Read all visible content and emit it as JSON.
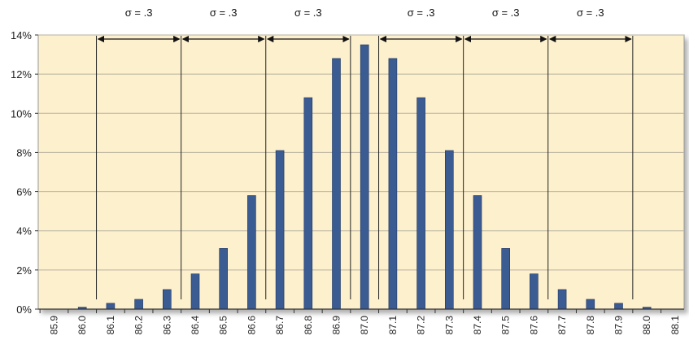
{
  "chart_data": {
    "type": "bar",
    "categories": [
      "85.9",
      "86.0",
      "86.1",
      "86.2",
      "86.3",
      "86.4",
      "86.5",
      "86.6",
      "86.7",
      "86.8",
      "86.9",
      "87.0",
      "87.1",
      "87.2",
      "87.3",
      "87.4",
      "87.5",
      "87.6",
      "87.7",
      "87.8",
      "87.9",
      "88.0",
      "88.1"
    ],
    "values": [
      0,
      0.1,
      0.3,
      0.5,
      1.0,
      1.8,
      3.1,
      5.8,
      8.1,
      10.8,
      12.8,
      13.5,
      12.8,
      10.8,
      8.1,
      5.8,
      3.1,
      1.8,
      1.0,
      0.5,
      0.3,
      0.1,
      0
    ],
    "ylim": [
      0,
      14
    ],
    "y_ticks": [
      "0%",
      "2%",
      "4%",
      "6%",
      "8%",
      "10%",
      "12%",
      "14%"
    ],
    "grid": true,
    "annotations": {
      "sigma_label": "σ = .3",
      "boundaries": [
        86.05,
        86.35,
        86.65,
        86.95,
        87.05,
        87.35,
        87.65,
        87.95
      ]
    }
  },
  "colors": {
    "plot_bg": "#fdf0cd",
    "bar": "#3b5b93",
    "bar_edge": "#1f3560",
    "grid": "#b9b2a0",
    "axis": "#333333"
  }
}
